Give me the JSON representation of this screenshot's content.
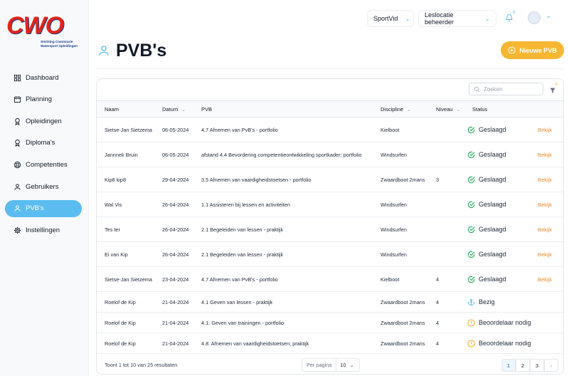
{
  "logo": {
    "mark": "CWO",
    "caption": "Stichting Commissie Watersport Opleidingen"
  },
  "nav": {
    "items": [
      "Dashboard",
      "Planning",
      "Opleidingen",
      "Diploma's",
      "Competenties",
      "Gebruikers",
      "PVB's",
      "Instellingen"
    ],
    "active": 6
  },
  "topbar": {
    "location": "SportVid",
    "role": "Leslocatie beheerder",
    "notifications": 0
  },
  "header": {
    "title": "PVB's",
    "button": "Nieuwe PVB"
  },
  "toolbar": {
    "search_placeholder": "Zoeken",
    "filter_count": 0
  },
  "table": {
    "columns": [
      "Naam",
      "Datum",
      "PVB",
      "Discipline",
      "Niveau",
      "Status"
    ],
    "rows": [
      {
        "name": "Sietse-Jan Sietzema",
        "date": "06-05-2024",
        "pvb": "4.7 Afnemen van PvB's - portfolio",
        "discipline": "Kielboot",
        "status": "Geslaagd",
        "status_icon": "check",
        "action": "Bekijk"
      },
      {
        "name": "Jannnek Bruin",
        "date": "06-05-2024",
        "pvb": "afstand 4.4 Bevordering competentieontwikkeling sportkader; portfolio",
        "discipline": "Windsurfen",
        "status": "Geslaagd",
        "status_icon": "check",
        "action": "Bekijk"
      },
      {
        "name": "Kip8 kip8",
        "date": "29-04-2024",
        "pvb": "3.5 Afnemen van vaardigheidstoetsen - portfolio",
        "discipline": "Zwaardboot 2mans",
        "niveau": 3,
        "status": "Geslaagd",
        "status_icon": "check",
        "action": "Bekijk"
      },
      {
        "name": "Wal Vis",
        "date": "26-04-2024",
        "pvb": "1.1 Assisteren bij lessen en activiteiten",
        "discipline": "Windsurfen",
        "status": "Geslaagd",
        "status_icon": "check",
        "action": "Bekijk"
      },
      {
        "name": "Tes ter",
        "date": "26-04-2024",
        "pvb": "2.1 Begeleiden van lessen - praktijk",
        "discipline": "Windsurfen",
        "status": "Geslaagd",
        "status_icon": "check",
        "action": "Bekijk"
      },
      {
        "name": "Ei van Kip",
        "date": "26-04-2024",
        "pvb": "2.1 Begeleiden van lessen - praktijk",
        "discipline": "Windsurfen",
        "status": "Geslaagd",
        "status_icon": "check",
        "action": "Bekijk"
      },
      {
        "name": "Sietse-Jan Sietzema",
        "date": "23-04-2024",
        "pvb": "4.7 Afnemen van PvB's - portfolio",
        "discipline": "Kielboot",
        "niveau": 4,
        "status": "Geslaagd",
        "status_icon": "check",
        "action": "Bekijk"
      },
      {
        "name": "Roelof de Kip",
        "date": "21-04-2024",
        "pvb": "4.1 Geven van lessen - praktijk",
        "discipline": "Zwaardboot 2mans",
        "niveau": 4,
        "status": "Bezig",
        "status_icon": "anchor"
      },
      {
        "name": "Roelof de Kip",
        "date": "21-04-2024",
        "pvb": "4.1. Geven van trainingen - portfolio",
        "discipline": "Zwaardboot 2mans",
        "niveau": 4,
        "status": "Beoordelaar nodig",
        "status_icon": "alert"
      },
      {
        "name": "Roelof de Kip",
        "date": "21-04-2024",
        "pvb": "4.8. Afnemen van vaardigheidstoetsen; praktijk",
        "discipline": "Zwaardboot 2mans",
        "niveau": 4,
        "status": "Beoordelaar nodig",
        "status_icon": "alert"
      }
    ]
  },
  "footer": {
    "summary": "Toont 1 tot 10 van 25 resultaten",
    "per_page_label": "Per pagina",
    "per_page": 10,
    "pages": [
      1,
      2,
      3
    ],
    "current_page": 0
  }
}
